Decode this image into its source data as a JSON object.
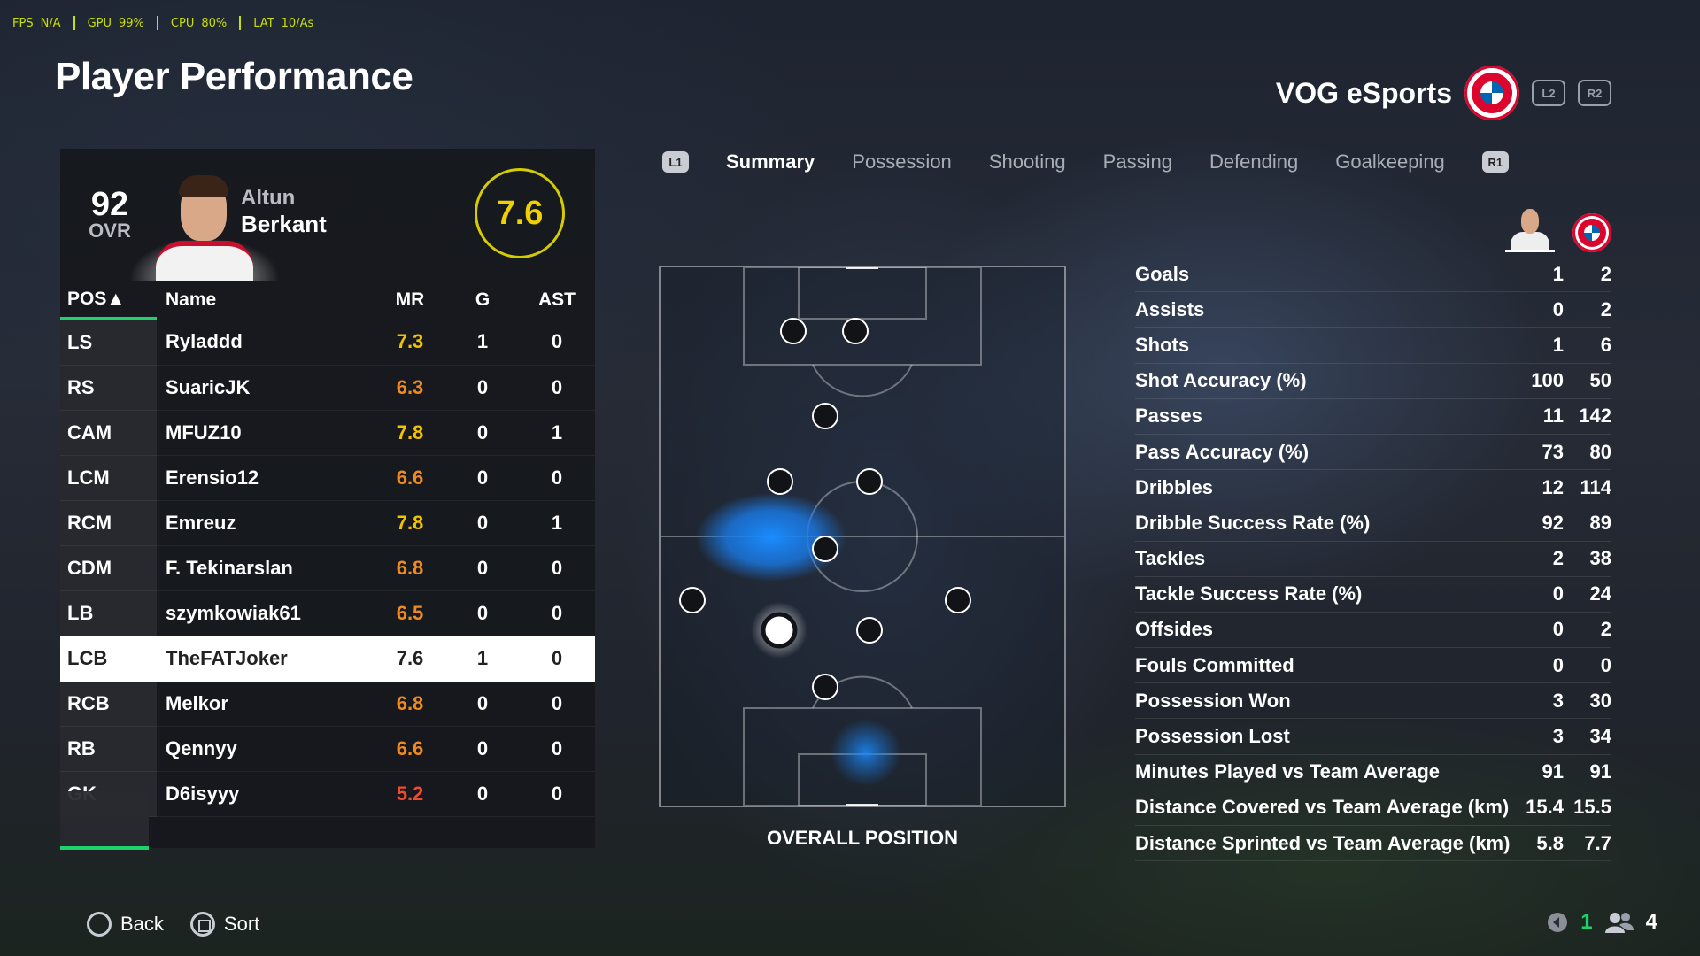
{
  "status_bar": [
    {
      "label": "FPS",
      "value": "N/A"
    },
    {
      "label": "GPU",
      "value": "99%"
    },
    {
      "label": "CPU",
      "value": "80%"
    },
    {
      "label": "LAT",
      "value": "10/As"
    }
  ],
  "page_title": "Player Performance",
  "team": {
    "name": "VOG eSports",
    "left_bumper": "L2",
    "right_bumper": "R2"
  },
  "player": {
    "ovr": "92",
    "ovr_label": "OVR",
    "first_name": "Altun",
    "last_name": "Berkant",
    "rating": "7.6"
  },
  "roster": {
    "headers": {
      "pos": "POS▲",
      "name": "Name",
      "mr": "MR",
      "g": "G",
      "ast": "AST"
    },
    "rows": [
      {
        "pos": "LS",
        "name": "Ryladdd",
        "mr": "7.3",
        "g": "1",
        "ast": "0",
        "tone": "y"
      },
      {
        "pos": "RS",
        "name": "SuaricJK",
        "mr": "6.3",
        "g": "0",
        "ast": "0",
        "tone": "o"
      },
      {
        "pos": "CAM",
        "name": "MFUZ10",
        "mr": "7.8",
        "g": "0",
        "ast": "1",
        "tone": "y"
      },
      {
        "pos": "LCM",
        "name": "Erensio12",
        "mr": "6.6",
        "g": "0",
        "ast": "0",
        "tone": "o"
      },
      {
        "pos": "RCM",
        "name": "Emreuz",
        "mr": "7.8",
        "g": "0",
        "ast": "1",
        "tone": "y"
      },
      {
        "pos": "CDM",
        "name": "F. Tekinarslan",
        "mr": "6.8",
        "g": "0",
        "ast": "0",
        "tone": "o"
      },
      {
        "pos": "LB",
        "name": "szymkowiak61",
        "mr": "6.5",
        "g": "0",
        "ast": "0",
        "tone": "o"
      },
      {
        "pos": "LCB",
        "name": "TheFATJoker",
        "mr": "7.6",
        "g": "1",
        "ast": "0",
        "tone": "y",
        "selected": true
      },
      {
        "pos": "RCB",
        "name": "Melkor",
        "mr": "6.8",
        "g": "0",
        "ast": "0",
        "tone": "o"
      },
      {
        "pos": "RB",
        "name": "Qennyy",
        "mr": "6.6",
        "g": "0",
        "ast": "0",
        "tone": "o"
      },
      {
        "pos": "GK",
        "name": "D6isyyy",
        "mr": "5.2",
        "g": "0",
        "ast": "0",
        "tone": "r"
      }
    ]
  },
  "tabs": {
    "left_key": "L1",
    "right_key": "R1",
    "items": [
      "Summary",
      "Possession",
      "Shooting",
      "Passing",
      "Defending",
      "Goalkeeping"
    ],
    "active": "Summary"
  },
  "pitch": {
    "label": "OVERALL POSITION"
  },
  "stats": [
    {
      "label": "Goals",
      "player": "1",
      "team": "2"
    },
    {
      "label": "Assists",
      "player": "0",
      "team": "2"
    },
    {
      "label": "Shots",
      "player": "1",
      "team": "6"
    },
    {
      "label": "Shot Accuracy (%)",
      "player": "100",
      "team": "50"
    },
    {
      "label": "Passes",
      "player": "11",
      "team": "142"
    },
    {
      "label": "Pass Accuracy (%)",
      "player": "73",
      "team": "80"
    },
    {
      "label": "Dribbles",
      "player": "12",
      "team": "114"
    },
    {
      "label": "Dribble Success Rate (%)",
      "player": "92",
      "team": "89"
    },
    {
      "label": "Tackles",
      "player": "2",
      "team": "38"
    },
    {
      "label": "Tackle Success Rate (%)",
      "player": "0",
      "team": "24"
    },
    {
      "label": "Offsides",
      "player": "0",
      "team": "2"
    },
    {
      "label": "Fouls Committed",
      "player": "0",
      "team": "0"
    },
    {
      "label": "Possession Won",
      "player": "3",
      "team": "30"
    },
    {
      "label": "Possession Lost",
      "player": "3",
      "team": "34"
    },
    {
      "label": "Minutes Played vs Team Average",
      "player": "91",
      "team": "91"
    },
    {
      "label": "Distance Covered vs Team Average (km)",
      "player": "15.4",
      "team": "15.5"
    },
    {
      "label": "Distance Sprinted vs Team Average (km)",
      "player": "5.8",
      "team": "7.7"
    }
  ],
  "footer": {
    "back": "Back",
    "sort": "Sort",
    "count_a": "1",
    "count_b": "4"
  },
  "colors": {
    "accent_green": "#1fd16b",
    "rating_yellow": "#f2c400",
    "rating_orange": "#f08a20",
    "rating_red": "#f04a30",
    "heat_blue": "#1a8cff"
  }
}
